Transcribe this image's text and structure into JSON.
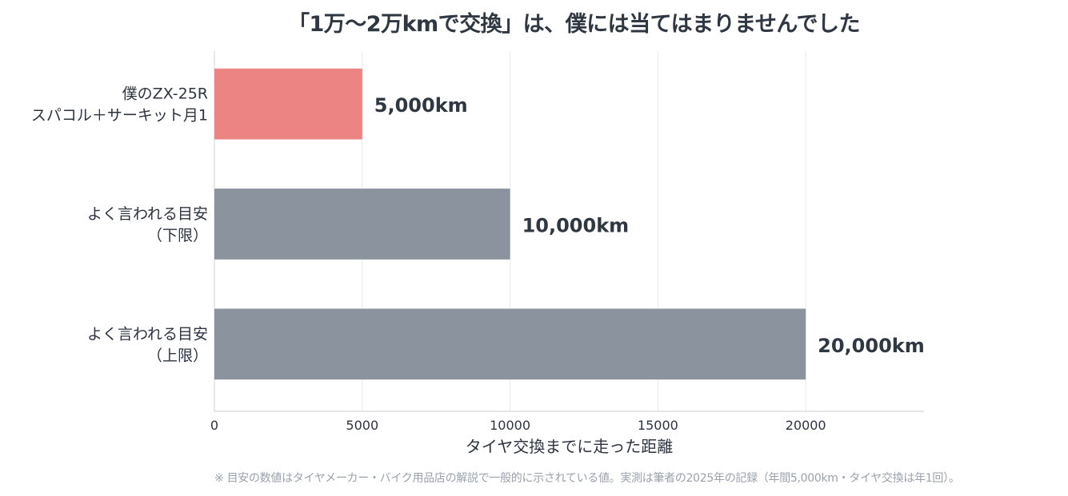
{
  "chart_data": {
    "type": "bar",
    "orientation": "horizontal",
    "title": "「1万〜2万kmで交換」は、僕には当てはまりませんでした",
    "xlabel": "タイヤ交換までに走った距離",
    "ylabel": "",
    "xlim": [
      0,
      24000
    ],
    "xticks": [
      "0",
      "5000",
      "10000",
      "15000",
      "20000"
    ],
    "xtick_values": [
      0,
      5000,
      10000,
      15000,
      20000
    ],
    "grid": true,
    "categories": [
      [
        "僕のZX-25R",
        "スパコル＋サーキット月1"
      ],
      [
        "よく言われる目安",
        "（下限）"
      ],
      [
        "よく言われる目安",
        "（上限）"
      ]
    ],
    "values": [
      5000,
      10000,
      20000
    ],
    "value_labels": [
      "5,000km",
      "10,000km",
      "20,000km"
    ],
    "colors": [
      "#eb8482",
      "#8a939e",
      "#8a939e"
    ]
  },
  "footnote": "※ 目安の数値はタイヤメーカー・バイク用品店の解説で一般的に示されている値。実測は筆者の2025年の記録（年間5,000km・タイヤ交換は年1回）。"
}
